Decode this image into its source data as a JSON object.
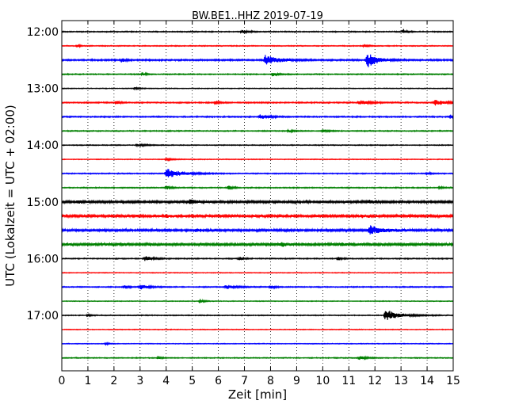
{
  "chart_data": {
    "type": "line",
    "title": "BW.BE1..HHZ 2019-07-19",
    "xlabel": "Zeit  [min]",
    "ylabel": "UTC (Lokalzeit = UTC + 02:00)",
    "xlim": [
      0,
      15
    ],
    "x_ticks": [
      0,
      1,
      2,
      3,
      4,
      5,
      6,
      7,
      8,
      9,
      10,
      11,
      12,
      13,
      14,
      15
    ],
    "x_tick_labels": [
      "0",
      "1",
      "2",
      "3",
      "4",
      "5",
      "6",
      "7",
      "8",
      "9",
      "10",
      "11",
      "12",
      "13",
      "14",
      "15"
    ],
    "y_tick_labels": [
      "12:00",
      "13:00",
      "14:00",
      "15:00",
      "16:00",
      "17:00"
    ],
    "y_tick_rows": [
      0,
      4,
      8,
      12,
      16,
      20
    ],
    "grid": "vertical dotted",
    "colors": [
      "#000000",
      "#ff0000",
      "#0000ff",
      "#008000"
    ],
    "traces": [
      {
        "start": "12:00",
        "color": "#000000",
        "noise": 0.6,
        "events": [
          {
            "t": 6.9,
            "amp": 2.0,
            "dur": 0.3
          },
          {
            "t": 13.1,
            "amp": 2.5,
            "dur": 0.2
          }
        ]
      },
      {
        "start": "12:15",
        "color": "#ff0000",
        "noise": 0.5,
        "events": [
          {
            "t": 0.6,
            "amp": 1.5,
            "dur": 0.2
          },
          {
            "t": 11.6,
            "amp": 2.0,
            "dur": 0.2
          }
        ]
      },
      {
        "start": "12:30",
        "color": "#0000ff",
        "noise": 0.9,
        "events": [
          {
            "t": 2.3,
            "amp": 2.5,
            "dur": 0.2
          },
          {
            "t": 7.8,
            "amp": 6.0,
            "dur": 0.8
          },
          {
            "t": 11.7,
            "amp": 9.0,
            "dur": 0.6
          }
        ]
      },
      {
        "start": "12:45",
        "color": "#008000",
        "noise": 0.6,
        "events": [
          {
            "t": 3.1,
            "amp": 2.0,
            "dur": 0.2
          },
          {
            "t": 8.1,
            "amp": 2.5,
            "dur": 0.3
          }
        ]
      },
      {
        "start": "13:00",
        "color": "#000000",
        "noise": 0.4,
        "events": [
          {
            "t": 2.8,
            "amp": 1.2,
            "dur": 0.3
          }
        ]
      },
      {
        "start": "13:15",
        "color": "#ff0000",
        "noise": 0.7,
        "events": [
          {
            "t": 2.1,
            "amp": 2.0,
            "dur": 0.2
          },
          {
            "t": 5.9,
            "amp": 2.0,
            "dur": 0.2
          },
          {
            "t": 11.4,
            "amp": 2.5,
            "dur": 0.6
          },
          {
            "t": 14.3,
            "amp": 3.5,
            "dur": 0.7
          }
        ]
      },
      {
        "start": "13:30",
        "color": "#0000ff",
        "noise": 0.7,
        "events": [
          {
            "t": 7.6,
            "amp": 2.5,
            "dur": 0.5
          },
          {
            "t": 14.9,
            "amp": 2.5,
            "dur": 0.2
          }
        ]
      },
      {
        "start": "13:45",
        "color": "#008000",
        "noise": 0.6,
        "events": [
          {
            "t": 8.7,
            "amp": 1.5,
            "dur": 0.3
          },
          {
            "t": 10.0,
            "amp": 1.5,
            "dur": 0.3
          }
        ]
      },
      {
        "start": "14:00",
        "color": "#000000",
        "noise": 0.5,
        "events": [
          {
            "t": 2.9,
            "amp": 1.5,
            "dur": 0.5
          }
        ]
      },
      {
        "start": "14:15",
        "color": "#ff0000",
        "noise": 0.4,
        "events": [
          {
            "t": 4.0,
            "amp": 1.2,
            "dur": 0.4
          }
        ]
      },
      {
        "start": "14:30",
        "color": "#0000ff",
        "noise": 0.6,
        "events": [
          {
            "t": 4.0,
            "amp": 6.0,
            "dur": 0.9
          },
          {
            "t": 14.0,
            "amp": 1.5,
            "dur": 0.2
          }
        ]
      },
      {
        "start": "14:45",
        "color": "#008000",
        "noise": 0.6,
        "events": [
          {
            "t": 4.0,
            "amp": 2.0,
            "dur": 0.3
          },
          {
            "t": 6.4,
            "amp": 3.0,
            "dur": 0.2
          },
          {
            "t": 14.5,
            "amp": 1.5,
            "dur": 0.2
          }
        ]
      },
      {
        "start": "15:00",
        "color": "#000000",
        "noise": 1.3,
        "events": [
          {
            "t": 0.6,
            "amp": 2.0,
            "dur": 0.3
          },
          {
            "t": 4.9,
            "amp": 3.0,
            "dur": 0.4
          },
          {
            "t": 11.8,
            "amp": 2.0,
            "dur": 0.3
          }
        ]
      },
      {
        "start": "15:15",
        "color": "#ff0000",
        "noise": 1.5,
        "events": [
          {
            "t": 4.0,
            "amp": 1.5,
            "dur": 0.4
          },
          {
            "t": 11.5,
            "amp": 1.5,
            "dur": 0.4
          }
        ]
      },
      {
        "start": "15:30",
        "color": "#0000ff",
        "noise": 1.3,
        "events": [
          {
            "t": 5.1,
            "amp": 2.0,
            "dur": 0.5
          },
          {
            "t": 11.8,
            "amp": 5.0,
            "dur": 0.8
          }
        ]
      },
      {
        "start": "15:45",
        "color": "#008000",
        "noise": 1.5,
        "events": [
          {
            "t": 8.4,
            "amp": 2.5,
            "dur": 0.4
          },
          {
            "t": 10.7,
            "amp": 1.5,
            "dur": 0.3
          }
        ]
      },
      {
        "start": "16:00",
        "color": "#000000",
        "noise": 0.6,
        "events": [
          {
            "t": 3.2,
            "amp": 3.0,
            "dur": 0.4
          },
          {
            "t": 6.8,
            "amp": 2.0,
            "dur": 0.2
          },
          {
            "t": 10.6,
            "amp": 2.0,
            "dur": 0.2
          }
        ]
      },
      {
        "start": "16:15",
        "color": "#ff0000",
        "noise": 0.4,
        "events": []
      },
      {
        "start": "16:30",
        "color": "#0000ff",
        "noise": 0.6,
        "events": [
          {
            "t": 2.4,
            "amp": 2.0,
            "dur": 0.2
          },
          {
            "t": 3.0,
            "amp": 3.0,
            "dur": 0.5
          },
          {
            "t": 6.3,
            "amp": 2.5,
            "dur": 0.6
          },
          {
            "t": 8.0,
            "amp": 1.8,
            "dur": 0.3
          }
        ]
      },
      {
        "start": "16:45",
        "color": "#008000",
        "noise": 0.4,
        "events": [
          {
            "t": 5.3,
            "amp": 2.5,
            "dur": 0.2
          }
        ]
      },
      {
        "start": "17:00",
        "color": "#000000",
        "noise": 0.5,
        "events": [
          {
            "t": 1.0,
            "amp": 1.5,
            "dur": 0.2
          },
          {
            "t": 12.4,
            "amp": 6.0,
            "dur": 0.9
          }
        ]
      },
      {
        "start": "17:15",
        "color": "#ff0000",
        "noise": 0.4,
        "events": []
      },
      {
        "start": "17:30",
        "color": "#0000ff",
        "noise": 0.4,
        "events": [
          {
            "t": 1.7,
            "amp": 1.2,
            "dur": 0.2
          }
        ]
      },
      {
        "start": "17:45",
        "color": "#008000",
        "noise": 0.5,
        "events": [
          {
            "t": 3.7,
            "amp": 1.5,
            "dur": 0.2
          },
          {
            "t": 11.4,
            "amp": 2.5,
            "dur": 0.4
          }
        ]
      }
    ]
  }
}
